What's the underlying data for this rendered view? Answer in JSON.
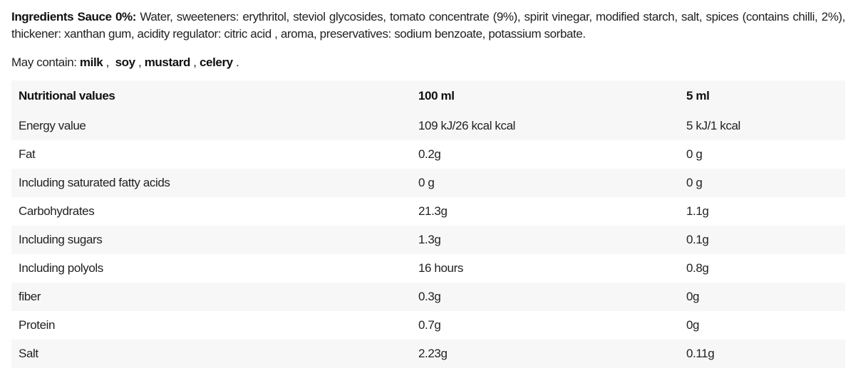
{
  "ingredients": {
    "label": "Ingredients Sauce 0%:",
    "text": " Water, sweeteners: erythritol, steviol glycosides, tomato concentrate (9%), spirit vinegar, modified starch, salt, spices (contains chilli, 2%), thickener: xanthan gum, acidity regulator: citric acid , aroma, preservatives: sodium benzoate, potassium sorbate."
  },
  "may_contain": {
    "label": "May contain: ",
    "allergens": [
      "milk",
      "soy",
      "mustard",
      "celery"
    ]
  },
  "table": {
    "headers": [
      "Nutritional values",
      "100 ml",
      "5 ml"
    ],
    "rows": [
      [
        "Energy value",
        "109 kJ/26 kcal kcal",
        "5 kJ/1 kcal"
      ],
      [
        "Fat",
        "0.2g",
        "0 g"
      ],
      [
        "Including saturated fatty acids",
        "0 g",
        "0 g"
      ],
      [
        "Carbohydrates",
        "21.3g",
        "1.1g"
      ],
      [
        "Including sugars",
        "1.3g",
        "0.1g"
      ],
      [
        "Including polyols",
        "16 hours",
        "0.8g"
      ],
      [
        "fiber",
        "0.3g",
        "0g"
      ],
      [
        "Protein",
        "0.7g",
        "0g"
      ],
      [
        "Salt",
        "2.23g",
        "0.11g"
      ]
    ]
  },
  "colors": {
    "stripe": "#f7f7f7",
    "text": "#222222"
  }
}
